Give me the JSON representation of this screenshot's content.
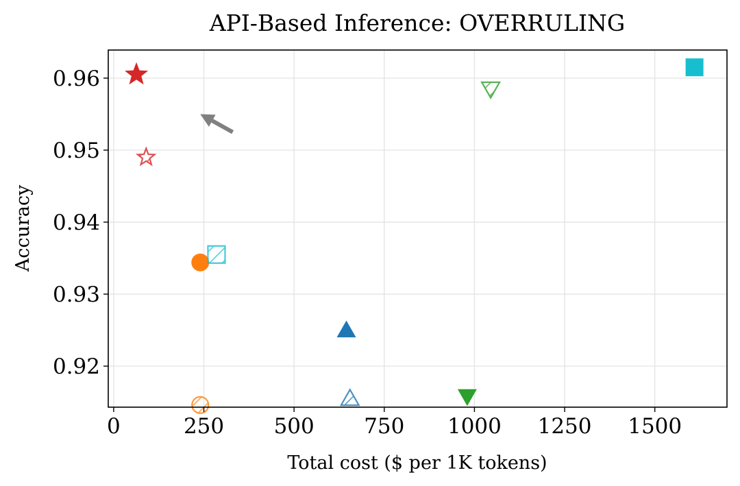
{
  "chart_data": {
    "type": "scatter",
    "title": "API-Based Inference: OVERRULING",
    "xlabel": "Total cost ($ per 1K tokens)",
    "ylabel": "Accuracy",
    "xlim": [
      -15,
      1700
    ],
    "ylim": [
      0.9143,
      0.9639
    ],
    "xticks": [
      0,
      250,
      500,
      750,
      1000,
      1250,
      1500
    ],
    "yticks": [
      0.92,
      0.93,
      0.94,
      0.95,
      0.96
    ],
    "grid": true,
    "points": [
      {
        "x": 63,
        "y": 0.9605,
        "marker": "star",
        "fill": "solid",
        "color": "#d62728"
      },
      {
        "x": 90,
        "y": 0.949,
        "marker": "star",
        "fill": "hatch",
        "color": "#d62728"
      },
      {
        "x": 240,
        "y": 0.9344,
        "marker": "circle",
        "fill": "solid",
        "color": "#ff7f0e"
      },
      {
        "x": 240,
        "y": 0.9146,
        "marker": "circle",
        "fill": "hatch",
        "color": "#ff7f0e"
      },
      {
        "x": 285,
        "y": 0.9355,
        "marker": "square",
        "fill": "hatch",
        "color": "#17becf"
      },
      {
        "x": 645,
        "y": 0.925,
        "marker": "triangle-up",
        "fill": "solid",
        "color": "#1f77b4"
      },
      {
        "x": 655,
        "y": 0.9155,
        "marker": "triangle-up",
        "fill": "hatch",
        "color": "#1f77b4"
      },
      {
        "x": 980,
        "y": 0.9158,
        "marker": "triangle-down",
        "fill": "solid",
        "color": "#2ca02c"
      },
      {
        "x": 1045,
        "y": 0.9585,
        "marker": "triangle-down",
        "fill": "hatch",
        "color": "#2ca02c"
      },
      {
        "x": 1610,
        "y": 0.9615,
        "marker": "square",
        "fill": "solid",
        "color": "#17becf"
      }
    ],
    "arrow": {
      "from": [
        330,
        0.9525
      ],
      "to": [
        240,
        0.955
      ],
      "color": "#808080"
    }
  }
}
